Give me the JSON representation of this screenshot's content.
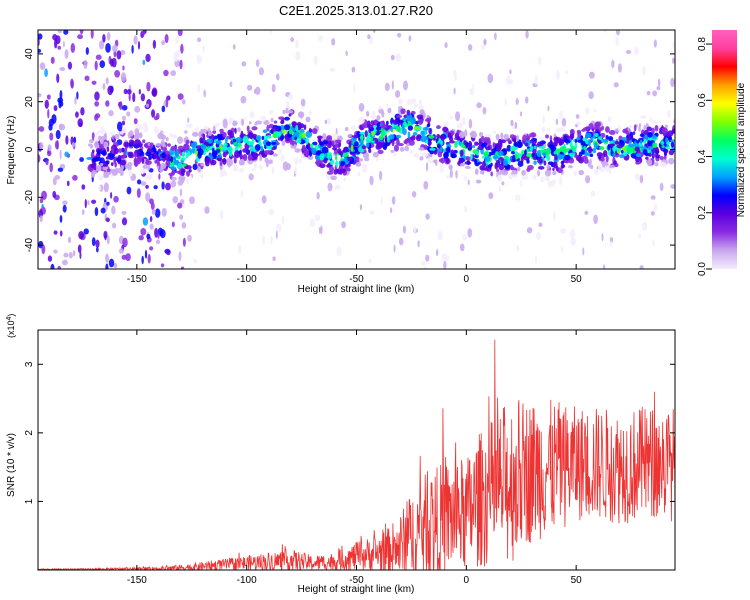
{
  "title": "C2E1.2025.313.01.27.R20",
  "chart_data": [
    {
      "type": "heatmap",
      "xlabel": "Height of straight line (km)",
      "ylabel": "Frequency (Hz)",
      "xlim": [
        -195,
        95
      ],
      "ylim": [
        -50,
        50
      ],
      "xticks": [
        -150,
        -100,
        -50,
        0,
        50
      ],
      "yticks": [
        -40,
        -20,
        0,
        20,
        40
      ],
      "colorbar": {
        "label": "Normalized spectral amplitude",
        "range": [
          0.0,
          0.85
        ],
        "ticks": [
          0.0,
          0.2,
          0.4,
          0.6,
          0.8
        ],
        "colors": [
          "#f4ecfb",
          "#c9a8ef",
          "#8a2be2",
          "#5a00e0",
          "#0000ff",
          "#00a0ff",
          "#00ffd0",
          "#00ff60",
          "#80ff00",
          "#ffff00",
          "#ffa000",
          "#ff0000",
          "#ff40a0",
          "#ff60c0"
        ]
      },
      "ridge": {
        "x": [
          -170,
          -160,
          -150,
          -140,
          -130,
          -120,
          -110,
          -100,
          -90,
          -85,
          -80,
          -75,
          -70,
          -60,
          -55,
          -50,
          -45,
          -40,
          -35,
          -30,
          -25,
          -20,
          -15,
          -10,
          -5,
          0,
          10,
          20,
          30,
          40,
          50,
          60,
          70,
          80,
          90
        ],
        "y": [
          -4,
          -2,
          0,
          -2,
          -5,
          0,
          1,
          2,
          4,
          8,
          9,
          6,
          2,
          -4,
          -3,
          2,
          5,
          6,
          7,
          9,
          10,
          8,
          3,
          2,
          1,
          0,
          -3,
          -2,
          -1,
          -2,
          1,
          3,
          0,
          2,
          3
        ]
      }
    },
    {
      "type": "line",
      "xlabel": "Height of straight line (km)",
      "ylabel": "SNR (10 * v/v)",
      "yscale_label": "(x10",
      "yscale_exp": "4",
      "yscale_close": ")",
      "xlim": [
        -195,
        95
      ],
      "ylim": [
        0,
        3.5
      ],
      "xticks": [
        -150,
        -100,
        -50,
        0,
        50
      ],
      "yticks": [
        1,
        2,
        3
      ],
      "color": "#ee3333",
      "envelope": {
        "x": [
          -195,
          -170,
          -140,
          -125,
          -110,
          -100,
          -90,
          -80,
          -75,
          -70,
          -60,
          -50,
          -40,
          -35,
          -30,
          -25,
          -20,
          -15,
          -10,
          -5,
          0,
          5,
          10,
          15,
          20,
          25,
          30,
          40,
          50,
          60,
          70,
          80,
          95
        ],
        "mean": [
          0.01,
          0.01,
          0.02,
          0.04,
          0.08,
          0.1,
          0.12,
          0.14,
          0.12,
          0.1,
          0.12,
          0.2,
          0.25,
          0.28,
          0.35,
          0.5,
          0.6,
          0.65,
          0.75,
          0.8,
          0.8,
          1.0,
          1.1,
          1.2,
          1.3,
          1.4,
          1.45,
          1.5,
          1.55,
          1.55,
          1.5,
          1.55,
          1.55
        ],
        "spread": [
          0.005,
          0.01,
          0.02,
          0.04,
          0.06,
          0.08,
          0.1,
          0.12,
          0.1,
          0.08,
          0.1,
          0.15,
          0.2,
          0.25,
          0.35,
          0.45,
          0.55,
          0.6,
          0.6,
          0.6,
          0.6,
          0.7,
          0.75,
          0.8,
          0.9,
          0.8,
          0.75,
          0.7,
          0.6,
          0.6,
          0.6,
          0.6,
          0.6
        ]
      }
    }
  ]
}
